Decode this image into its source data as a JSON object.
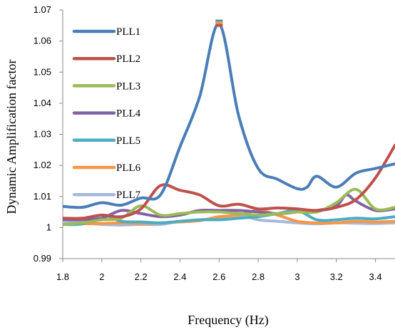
{
  "chart_data": {
    "type": "line",
    "xlabel": "Frequency (Hz)",
    "ylabel": "Dynamic Amplification factor",
    "xlim": [
      1.8,
      3.5
    ],
    "ylim": [
      0.99,
      1.07
    ],
    "x_ticks": [
      "1.8",
      "2",
      "2.2",
      "2.4",
      "2.6",
      "2.8",
      "3",
      "3.2",
      "3.4"
    ],
    "y_ticks": [
      "0.99",
      "1",
      "1.01",
      "1.02",
      "1.03",
      "1.04",
      "1.05",
      "1.06",
      "1.07"
    ],
    "grid": false,
    "legend_position": "top-left",
    "series": [
      {
        "name": "PLL1",
        "color": "#4a7eb7",
        "points": [
          [
            1.8,
            1.0068
          ],
          [
            1.9,
            1.0065
          ],
          [
            2.0,
            1.008
          ],
          [
            2.1,
            1.0072
          ],
          [
            2.2,
            1.0095
          ],
          [
            2.3,
            1.0105
          ],
          [
            2.4,
            1.026
          ],
          [
            2.5,
            1.042
          ],
          [
            2.6,
            1.0655
          ],
          [
            2.7,
            1.036
          ],
          [
            2.8,
            1.019
          ],
          [
            2.9,
            1.0155
          ],
          [
            3.0,
            1.0125
          ],
          [
            3.05,
            1.013
          ],
          [
            3.1,
            1.0165
          ],
          [
            3.2,
            1.013
          ],
          [
            3.3,
            1.0175
          ],
          [
            3.4,
            1.019
          ],
          [
            3.5,
            1.0205
          ]
        ]
      },
      {
        "name": "PLL2",
        "color": "#c0504d",
        "points": [
          [
            1.8,
            1.003
          ],
          [
            1.9,
            1.003
          ],
          [
            2.0,
            1.004
          ],
          [
            2.1,
            1.0035
          ],
          [
            2.2,
            1.006
          ],
          [
            2.3,
            1.0135
          ],
          [
            2.4,
            1.012
          ],
          [
            2.5,
            1.0105
          ],
          [
            2.6,
            1.007
          ],
          [
            2.7,
            1.0075
          ],
          [
            2.8,
            1.006
          ],
          [
            2.9,
            1.0063
          ],
          [
            3.0,
            1.006
          ],
          [
            3.1,
            1.0055
          ],
          [
            3.2,
            1.0065
          ],
          [
            3.3,
            1.009
          ],
          [
            3.4,
            1.016
          ],
          [
            3.5,
            1.0265
          ]
        ]
      },
      {
        "name": "PLL3",
        "color": "#9bbb59",
        "points": [
          [
            1.8,
            1.001
          ],
          [
            1.9,
            1.0015
          ],
          [
            2.0,
            1.0025
          ],
          [
            2.1,
            1.003
          ],
          [
            2.2,
            1.007
          ],
          [
            2.3,
            1.004
          ],
          [
            2.4,
            1.0045
          ],
          [
            2.5,
            1.005
          ],
          [
            2.6,
            1.005
          ],
          [
            2.7,
            1.0045
          ],
          [
            2.8,
            1.004
          ],
          [
            2.9,
            1.0045
          ],
          [
            3.0,
            1.005
          ],
          [
            3.1,
            1.005
          ],
          [
            3.2,
            1.008
          ],
          [
            3.3,
            1.0123
          ],
          [
            3.4,
            1.006
          ],
          [
            3.5,
            1.0065
          ]
        ]
      },
      {
        "name": "PLL4",
        "color": "#8064a2",
        "points": [
          [
            1.8,
            1.0025
          ],
          [
            1.9,
            1.0025
          ],
          [
            2.0,
            1.003
          ],
          [
            2.1,
            1.0055
          ],
          [
            2.2,
            1.0045
          ],
          [
            2.3,
            1.0035
          ],
          [
            2.4,
            1.004
          ],
          [
            2.5,
            1.0055
          ],
          [
            2.6,
            1.0055
          ],
          [
            2.7,
            1.0055
          ],
          [
            2.8,
            1.005
          ],
          [
            2.9,
            1.0045
          ],
          [
            3.0,
            1.005
          ],
          [
            3.1,
            1.0055
          ],
          [
            3.2,
            1.007
          ],
          [
            3.25,
            1.0105
          ],
          [
            3.3,
            1.0085
          ],
          [
            3.4,
            1.0055
          ],
          [
            3.5,
            1.006
          ]
        ]
      },
      {
        "name": "PLL5",
        "color": "#4bacc6",
        "points": [
          [
            1.8,
            1.001
          ],
          [
            1.9,
            1.0012
          ],
          [
            2.0,
            1.004
          ],
          [
            2.1,
            1.002
          ],
          [
            2.2,
            1.0018
          ],
          [
            2.3,
            1.0015
          ],
          [
            2.4,
            1.002
          ],
          [
            2.5,
            1.0025
          ],
          [
            2.6,
            1.0025
          ],
          [
            2.7,
            1.003
          ],
          [
            2.8,
            1.0035
          ],
          [
            2.9,
            1.0045
          ],
          [
            3.0,
            1.0055
          ],
          [
            3.1,
            1.0025
          ],
          [
            3.2,
            1.0025
          ],
          [
            3.3,
            1.003
          ],
          [
            3.4,
            1.0028
          ],
          [
            3.5,
            1.0035
          ]
        ]
      },
      {
        "name": "PLL6",
        "color": "#f79646",
        "points": [
          [
            1.8,
            1.001
          ],
          [
            1.9,
            1.0012
          ],
          [
            2.0,
            1.0013
          ],
          [
            2.1,
            1.0015
          ],
          [
            2.2,
            1.0013
          ],
          [
            2.3,
            1.0015
          ],
          [
            2.4,
            1.0018
          ],
          [
            2.5,
            1.0022
          ],
          [
            2.6,
            1.0035
          ],
          [
            2.7,
            1.004
          ],
          [
            2.8,
            1.0055
          ],
          [
            2.9,
            1.004
          ],
          [
            3.0,
            1.002
          ],
          [
            3.1,
            1.0015
          ],
          [
            3.2,
            1.0015
          ],
          [
            3.3,
            1.002
          ],
          [
            3.4,
            1.0018
          ],
          [
            3.5,
            1.002
          ]
        ]
      },
      {
        "name": "PLL7",
        "color": "#a5b9dc",
        "points": [
          [
            1.8,
            1.0015
          ],
          [
            1.9,
            1.0015
          ],
          [
            2.0,
            1.001
          ],
          [
            2.1,
            1.0008
          ],
          [
            2.2,
            1.001
          ],
          [
            2.3,
            1.001
          ],
          [
            2.4,
            1.002
          ],
          [
            2.5,
            1.0025
          ],
          [
            2.6,
            1.003
          ],
          [
            2.7,
            1.004
          ],
          [
            2.8,
            1.0025
          ],
          [
            2.9,
            1.002
          ],
          [
            3.0,
            1.0015
          ],
          [
            3.1,
            1.0012
          ],
          [
            3.2,
            1.0015
          ],
          [
            3.3,
            1.0014
          ],
          [
            3.4,
            1.0013
          ],
          [
            3.5,
            1.0015
          ]
        ]
      }
    ],
    "peak_marker": {
      "x": 2.6,
      "y": 1.0655
    }
  }
}
